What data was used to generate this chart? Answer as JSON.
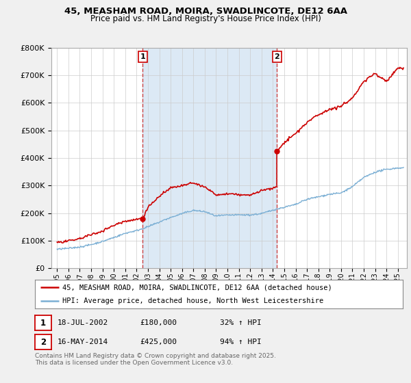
{
  "title": "45, MEASHAM ROAD, MOIRA, SWADLINCOTE, DE12 6AA",
  "subtitle": "Price paid vs. HM Land Registry's House Price Index (HPI)",
  "legend_line1": "45, MEASHAM ROAD, MOIRA, SWADLINCOTE, DE12 6AA (detached house)",
  "legend_line2": "HPI: Average price, detached house, North West Leicestershire",
  "footnote1": "Contains HM Land Registry data © Crown copyright and database right 2025.",
  "footnote2": "This data is licensed under the Open Government Licence v3.0.",
  "ann1_label": "1",
  "ann1_date": "18-JUL-2002",
  "ann1_price": "£180,000",
  "ann1_hpi": "32% ↑ HPI",
  "ann2_label": "2",
  "ann2_date": "16-MAY-2014",
  "ann2_price": "£425,000",
  "ann2_hpi": "94% ↑ HPI",
  "vline1_x": 2002.54,
  "vline2_x": 2014.37,
  "sale1_x": 2002.54,
  "sale1_y": 180000,
  "sale2_x": 2014.37,
  "sale2_y": 425000,
  "fig_bg": "#f0f0f0",
  "plot_bg": "#ffffff",
  "shade_color": "#dce9f5",
  "red_color": "#cc0000",
  "blue_color": "#7bafd4",
  "grid_color": "#cccccc",
  "vline_color": "#cc4444",
  "ylim": [
    0,
    800000
  ],
  "xlim": [
    1994.5,
    2025.8
  ],
  "hpi_ctrl_t": [
    1995,
    1996,
    1997,
    1998,
    1999,
    2000,
    2001,
    2002,
    2003,
    2004,
    2005,
    2006,
    2007,
    2008,
    2009,
    2010,
    2011,
    2012,
    2013,
    2014,
    2015,
    2016,
    2017,
    2018,
    2019,
    2020,
    2021,
    2022,
    2023,
    2024,
    2025
  ],
  "hpi_ctrl_v": [
    68000,
    72000,
    78000,
    87000,
    98000,
    113000,
    128000,
    138000,
    152000,
    168000,
    185000,
    198000,
    210000,
    205000,
    190000,
    193000,
    193000,
    192000,
    198000,
    210000,
    220000,
    230000,
    248000,
    258000,
    268000,
    272000,
    295000,
    330000,
    350000,
    360000,
    365000
  ],
  "red_ctrl_t": [
    1995,
    1996,
    1997,
    1998,
    1999,
    2000,
    2001,
    2002.54,
    2003,
    2004,
    2005,
    2006,
    2007,
    2008,
    2009,
    2010,
    2011,
    2012,
    2013,
    2014.37,
    2014.37,
    2015,
    2016,
    2017,
    2018,
    2019,
    2020,
    2021,
    2022,
    2023,
    2024,
    2025
  ],
  "red_ctrl_v": [
    93000,
    98000,
    107000,
    120000,
    135000,
    155000,
    170000,
    180000,
    220000,
    260000,
    290000,
    300000,
    310000,
    295000,
    265000,
    268000,
    265000,
    262000,
    278000,
    290000,
    425000,
    455000,
    490000,
    530000,
    560000,
    580000,
    590000,
    620000,
    680000,
    710000,
    680000,
    730000
  ]
}
